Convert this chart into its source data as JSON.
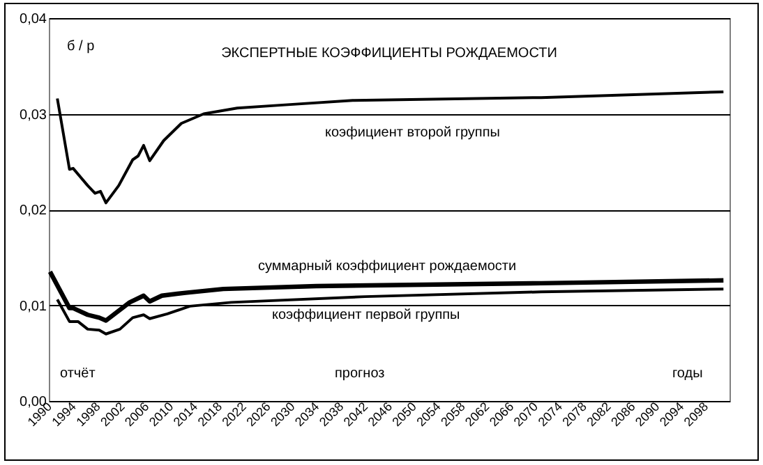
{
  "chart_data": {
    "type": "line",
    "title": "ЭКСПЕРТНЫЕ КОЭФФИЦИЕНТЫ РОЖДАЕМОСТИ",
    "ylabel": "б / р",
    "xlabel": "годы",
    "annotations": [
      "отчёт",
      "прогноз"
    ],
    "series": [
      {
        "name": "коэфициент второй группы",
        "color": "#000000",
        "x": [
          1991.4,
          1993.4,
          1994,
          1996.4,
          1997.6,
          1998.5,
          1999.4,
          2001.5,
          2003.8,
          2004.7,
          2005.6,
          2006.6,
          2008.9,
          2011.8,
          2015.5,
          2021,
          2028,
          2040,
          2071,
          2101
        ],
        "values": [
          0.0316,
          0.0242,
          0.0243,
          0.0225,
          0.0217,
          0.0219,
          0.0207,
          0.0225,
          0.0252,
          0.0256,
          0.0267,
          0.0251,
          0.0272,
          0.029,
          0.03,
          0.0306,
          0.0309,
          0.0314,
          0.0317,
          0.0323
        ]
      },
      {
        "name": "суммарный коэффициент рождаемости",
        "color": "#000000",
        "x": [
          1990.2,
          1993.4,
          1994,
          1996.4,
          1998.3,
          1999.4,
          2003.3,
          2005.6,
          2006.6,
          2008.6,
          2012.5,
          2018.7,
          2034,
          2071,
          2101
        ],
        "values": [
          0.0135,
          0.0097,
          0.0097,
          0.009,
          0.0087,
          0.0084,
          0.0103,
          0.011,
          0.0104,
          0.011,
          0.0113,
          0.0117,
          0.012,
          0.0123,
          0.0126
        ]
      },
      {
        "name": "коэффициент первой группы",
        "color": "#000000",
        "x": [
          1991.4,
          1993.4,
          1994.8,
          1996.4,
          1998.3,
          1999.4,
          2001.7,
          2003.8,
          2005.6,
          2006.6,
          2009.5,
          2013.2,
          2020,
          2042,
          2071,
          2101
        ],
        "values": [
          0.0106,
          0.0083,
          0.0083,
          0.0075,
          0.0074,
          0.007,
          0.0075,
          0.0087,
          0.009,
          0.0086,
          0.0091,
          0.0099,
          0.0103,
          0.0109,
          0.0114,
          0.0117
        ]
      }
    ],
    "xlim": [
      1990,
      2102
    ],
    "xticks": [
      1990,
      1994,
      1998,
      2002,
      2006,
      2010,
      2014,
      2018,
      2022,
      2026,
      2030,
      2034,
      2038,
      2042,
      2046,
      2050,
      2054,
      2058,
      2062,
      2066,
      2070,
      2074,
      2078,
      2082,
      2086,
      2090,
      2094,
      2098
    ],
    "ylim": [
      0,
      0.04
    ],
    "yticks": [
      {
        "value": 0,
        "label": "0,00"
      },
      {
        "value": 0.01,
        "label": "0,01"
      },
      {
        "value": 0.02,
        "label": "0,02"
      },
      {
        "value": 0.03,
        "label": "0,03"
      },
      {
        "value": 0.04,
        "label": "0,04"
      }
    ],
    "grid": "y",
    "marker": "none",
    "line_style": "solid"
  }
}
